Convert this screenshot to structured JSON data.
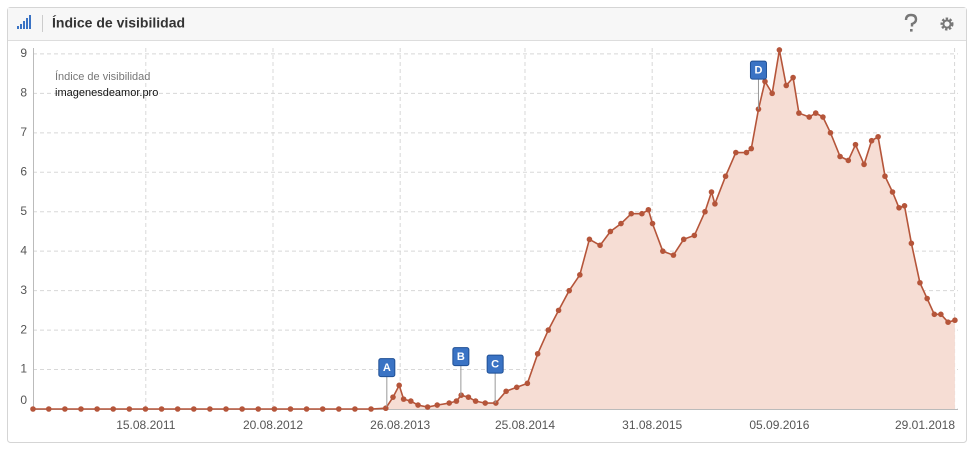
{
  "header": {
    "title": "Índice de visibilidad"
  },
  "chart_data": {
    "type": "area",
    "legend_title": "Índice de visibilidad",
    "x": [
      "20.09.2010",
      "05.11.2010",
      "22.12.2010",
      "07.02.2011",
      "26.03.2011",
      "12.05.2011",
      "28.06.2011",
      "14.08.2011",
      "30.09.2011",
      "16.11.2011",
      "02.01.2012",
      "18.02.2012",
      "05.04.2012",
      "22.05.2012",
      "08.07.2012",
      "24.08.2012",
      "10.10.2012",
      "26.11.2012",
      "12.01.2013",
      "28.02.2013",
      "16.04.2013",
      "02.06.2013",
      "15.07.2013",
      "05.08.2013",
      "23.08.2013",
      "05.09.2013",
      "26.09.2013",
      "17.10.2013",
      "14.11.2013",
      "12.12.2013",
      "16.01.2014",
      "06.02.2014",
      "20.02.2014",
      "13.03.2014",
      "03.04.2014",
      "01.05.2014",
      "01.06.2014",
      "01.07.2014",
      "01.08.2014",
      "01.09.2014",
      "01.10.2014",
      "01.11.2014",
      "01.12.2014",
      "01.01.2015",
      "01.02.2015",
      "01.03.2015",
      "01.04.2015",
      "01.05.2015",
      "01.06.2015",
      "01.07.2015",
      "01.08.2015",
      "20.08.2015",
      "01.09.2015",
      "01.10.2015",
      "01.11.2015",
      "01.12.2015",
      "01.01.2016",
      "01.02.2016",
      "20.02.2016",
      "01.03.2016",
      "01.04.2016",
      "01.05.2016",
      "01.06.2016",
      "15.06.2016",
      "06.07.2016",
      "25.07.2016",
      "15.08.2016",
      "05.09.2016",
      "25.09.2016",
      "15.10.2016",
      "01.11.2016",
      "01.12.2016",
      "20.12.2016",
      "10.01.2017",
      "01.02.2017",
      "01.03.2017",
      "25.03.2017",
      "15.04.2017",
      "10.05.2017",
      "01.06.2017",
      "20.06.2017",
      "10.07.2017",
      "01.08.2017",
      "20.08.2017",
      "05.09.2017",
      "25.09.2017",
      "20.10.2017",
      "10.11.2017",
      "01.12.2017",
      "20.12.2017",
      "10.01.2018",
      "30.01.2018"
    ],
    "series": [
      {
        "name": "imagenesdeamor.pro",
        "color": "#b5553a",
        "fill_color": "#f6ddd4",
        "values": [
          0,
          0,
          0,
          0,
          0,
          0,
          0,
          0,
          0,
          0,
          0,
          0,
          0,
          0,
          0,
          0,
          0,
          0,
          0,
          0,
          0,
          0,
          0.02,
          0.3,
          0.6,
          0.25,
          0.2,
          0.1,
          0.05,
          0.1,
          0.15,
          0.2,
          0.35,
          0.3,
          0.2,
          0.15,
          0.15,
          0.45,
          0.55,
          0.65,
          1.4,
          2.0,
          2.5,
          3.0,
          3.4,
          4.3,
          4.15,
          4.5,
          4.7,
          4.95,
          4.95,
          5.05,
          4.7,
          4.0,
          3.9,
          4.3,
          4.4,
          5.0,
          5.5,
          5.2,
          5.9,
          6.5,
          6.5,
          6.6,
          7.6,
          8.3,
          8.0,
          9.1,
          8.2,
          8.4,
          7.5,
          7.4,
          7.5,
          7.4,
          7.0,
          6.4,
          6.3,
          6.7,
          6.2,
          6.8,
          6.9,
          5.9,
          5.5,
          5.1,
          5.15,
          4.2,
          3.2,
          2.8,
          2.4,
          2.4,
          2.2,
          2.25
        ]
      }
    ],
    "events": [
      {
        "label": "A",
        "date": "18.07.2013"
      },
      {
        "label": "B",
        "date": "19.02.2014"
      },
      {
        "label": "C",
        "date": "30.05.2014"
      },
      {
        "label": "D",
        "date": "06.07.2016"
      }
    ],
    "xlim": [
      "20.09.2010",
      "08.02.2018"
    ],
    "xticks": [
      "15.08.2011",
      "20.08.2012",
      "26.08.2013",
      "25.08.2014",
      "31.08.2015",
      "05.09.2016",
      "29.01.2018"
    ],
    "ylim": [
      0,
      9.15
    ],
    "yticks": [
      0,
      1,
      2,
      3,
      4,
      5,
      6,
      7,
      8,
      9
    ],
    "grid": true
  }
}
